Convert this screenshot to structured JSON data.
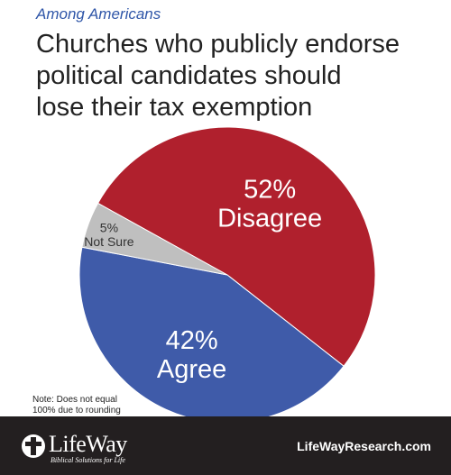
{
  "header": {
    "subtitle": "Among Americans",
    "title_lines": [
      "Churches who publicly endorse",
      "political candidates should",
      "lose their tax exemption"
    ]
  },
  "chart_data": {
    "type": "pie",
    "slices": [
      {
        "label": "Disagree",
        "value": 52,
        "value_label": "52%",
        "color": "#b0202d"
      },
      {
        "label": "Agree",
        "value": 42,
        "value_label": "42%",
        "color": "#3f5ba9"
      },
      {
        "label": "Not Sure",
        "value": 5,
        "value_label": "5%",
        "color": "#bfbfbf"
      }
    ],
    "legend": "none"
  },
  "note_lines": [
    "Note: Does not equal",
    "100% due to rounding"
  ],
  "footer": {
    "brand": "LifeWay",
    "tagline": "Biblical Solutions for Life",
    "website": "LifeWayResearch.com",
    "icon": "lifeway-cross-logo-icon"
  }
}
